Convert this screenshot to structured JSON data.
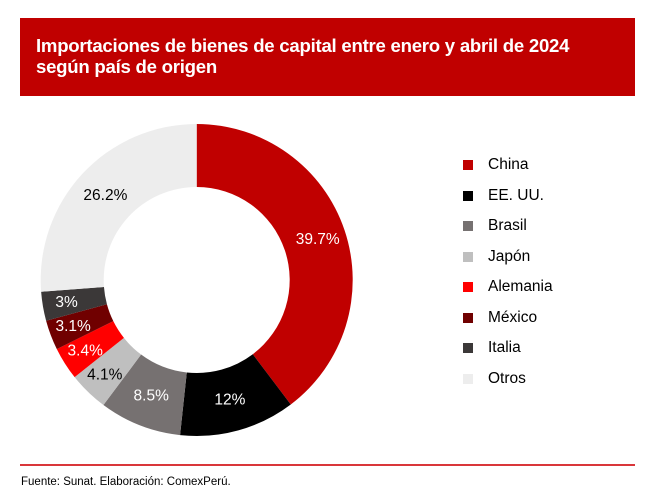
{
  "title": {
    "line1": "Importaciones de bienes de capital entre enero y abril de 2024",
    "line2": "según país de origen",
    "background": "#C00000"
  },
  "chart_data": {
    "type": "pie",
    "variant": "donut",
    "title": "Importaciones de bienes de capital entre enero y abril de 2024 según país de origen",
    "unit": "%",
    "start": "top, clockwise",
    "categories": [
      "China",
      "EE. UU.",
      "Brasil",
      "Japón",
      "Alemania",
      "México",
      "Italia",
      "Otros"
    ],
    "values": [
      39.7,
      12,
      8.5,
      4.1,
      3.4,
      3.1,
      3,
      26.2
    ],
    "labels": [
      "39.7%",
      "12%",
      "8.5%",
      "4.1%",
      "3.4%",
      "3.1%",
      "3%",
      "26.2%"
    ],
    "colors": [
      "#C00000",
      "#000000",
      "#767171",
      "#BFBFBF",
      "#FF0000",
      "#700000",
      "#3B3838",
      "#EDEDED"
    ],
    "label_colors": [
      "#FFFFFF",
      "#FFFFFF",
      "#FFFFFF",
      "#000000",
      "#FFFFFF",
      "#FFFFFF",
      "#FFFFFF",
      "#000000"
    ],
    "legend_position": "right"
  },
  "legend": {
    "items": [
      {
        "label": "China",
        "color": "#C00000"
      },
      {
        "label": "EE. UU.",
        "color": "#000000"
      },
      {
        "label": "Brasil",
        "color": "#767171"
      },
      {
        "label": "Japón",
        "color": "#BFBFBF"
      },
      {
        "label": "Alemania",
        "color": "#FF0000"
      },
      {
        "label": "México",
        "color": "#700000"
      },
      {
        "label": "Italia",
        "color": "#3B3838"
      },
      {
        "label": "Otros",
        "color": "#EDEDED"
      }
    ]
  },
  "footer": {
    "source": "Fuente: Sunat. Elaboración: ComexPerú.",
    "rule_color": "#D9363A"
  }
}
